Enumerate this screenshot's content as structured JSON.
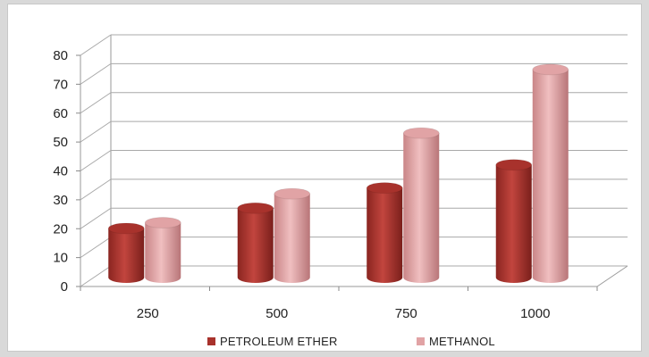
{
  "chart_data": {
    "type": "bar",
    "style": "3d-cylinder",
    "categories": [
      "250",
      "500",
      "750",
      "1000"
    ],
    "series": [
      {
        "name": "PETROLEUM ETHER",
        "values": [
          17,
          24,
          31,
          39
        ],
        "color": "#a8322c"
      },
      {
        "name": "METHANOL",
        "values": [
          19,
          29,
          50,
          72
        ],
        "color": "#e1a3a5"
      }
    ],
    "ylim": [
      0,
      80
    ],
    "yticks": [
      0,
      10,
      20,
      30,
      40,
      50,
      60,
      70,
      80
    ],
    "grid": true,
    "legend_position": "bottom",
    "title": "",
    "xlabel": "",
    "ylabel": ""
  }
}
